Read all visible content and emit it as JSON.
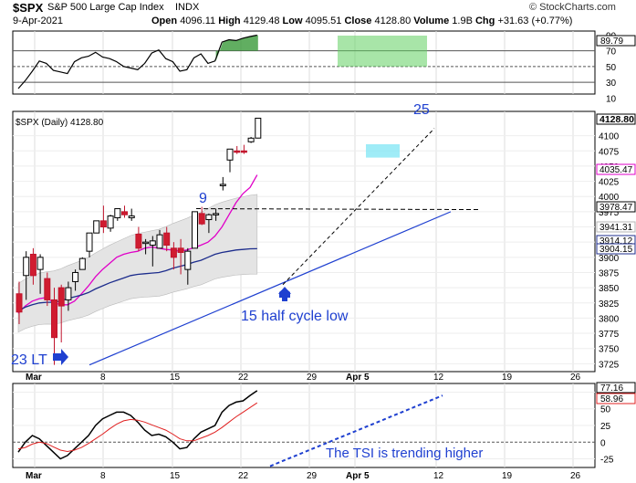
{
  "header": {
    "symbol": "$SPX",
    "name": "S&P 500 Large Cap Index",
    "exchange": "INDX",
    "date": "9-Apr-2021",
    "open_label": "Open",
    "open": "4096.11",
    "high_label": "High",
    "high": "4129.48",
    "low_label": "Low",
    "low": "4095.51",
    "close_label": "Close",
    "close": "4128.80",
    "volume_label": "Volume",
    "volume": "1.9B",
    "chg_label": "Chg",
    "chg": "+31.63 (+0.77%)",
    "watermark": "© StockCharts.com"
  },
  "chart_data": [
    {
      "type": "line",
      "panel": "rsi",
      "series": [
        {
          "name": "RSI",
          "values": [
            22,
            32,
            44,
            57,
            54,
            45,
            43,
            41,
            56,
            61,
            63,
            68,
            62,
            60,
            56,
            50,
            48,
            46,
            54,
            67,
            71,
            60,
            56,
            44,
            46,
            61,
            66,
            54,
            57,
            81,
            84,
            83,
            86,
            88,
            89.79
          ]
        }
      ],
      "ylim": [
        15,
        95
      ],
      "ticks": [
        10,
        30,
        50,
        70,
        90
      ],
      "tick_labels": [
        "10",
        "30",
        "50",
        "70",
        "90"
      ],
      "reference_lines": [
        70,
        50,
        30
      ],
      "last_value_label": "89.79",
      "highlight": "green box over final sessions (overbought)"
    },
    {
      "type": "candlestick",
      "panel": "price",
      "title": "$SPX (Daily) 4128.80",
      "last_price_label": "4128.80",
      "ohlc": [
        [
          3840,
          3860,
          3790,
          3810
        ],
        [
          3870,
          3910,
          3830,
          3900
        ],
        [
          3905,
          3915,
          3855,
          3870
        ],
        [
          3880,
          3905,
          3840,
          3900
        ],
        [
          3865,
          3875,
          3820,
          3830
        ],
        [
          3830,
          3850,
          3723,
          3768
        ],
        [
          3850,
          3855,
          3760,
          3820
        ],
        [
          3830,
          3860,
          3812,
          3850
        ],
        [
          3860,
          3880,
          3845,
          3875
        ],
        [
          3880,
          3900,
          3880,
          3898
        ],
        [
          3910,
          3940,
          3900,
          3940
        ],
        [
          3940,
          3960,
          3940,
          3960
        ],
        [
          3960,
          3985,
          3940,
          3950
        ],
        [
          3948,
          3970,
          3942,
          3968
        ],
        [
          3965,
          3980,
          3960,
          3980
        ],
        [
          3975,
          3985,
          3965,
          3970
        ],
        [
          3965,
          3980,
          3960,
          3968
        ],
        [
          3938,
          3950,
          3910,
          3915
        ],
        [
          3925,
          3930,
          3905,
          3925
        ],
        [
          3920,
          3935,
          3885,
          3927
        ],
        [
          3915,
          3945,
          3915,
          3937
        ],
        [
          3940,
          3950,
          3910,
          3920
        ],
        [
          3915,
          3925,
          3880,
          3900
        ],
        [
          3915,
          3930,
          3872,
          3908
        ],
        [
          3880,
          3915,
          3855,
          3910
        ],
        [
          3915,
          3975,
          3915,
          3975
        ],
        [
          3972,
          3983,
          3953,
          3955
        ],
        [
          3962,
          3972,
          3940,
          3970
        ],
        [
          3970,
          3980,
          3960,
          3972
        ],
        [
          4020,
          4032,
          4010,
          4020
        ],
        [
          4060,
          4078,
          4040,
          4078
        ],
        [
          4075,
          4083,
          4070,
          4073
        ],
        [
          4075,
          4085,
          4070,
          4073
        ],
        [
          4090,
          4098,
          4088,
          4096
        ],
        [
          4096.11,
          4129.48,
          4095.51,
          4128.8
        ]
      ],
      "overlays": [
        {
          "name": "EMA fast",
          "color": "#e000c8",
          "values": [
            3808,
            3820,
            3828,
            3832,
            3834,
            3826,
            3822,
            3822,
            3828,
            3840,
            3853,
            3868,
            3880,
            3890,
            3900,
            3905,
            3908,
            3910,
            3915,
            3917,
            3915,
            3913,
            3912,
            3910,
            3912,
            3916,
            3920,
            3925,
            3935,
            3950,
            3970,
            3990,
            4005,
            4015,
            4035.47
          ]
        },
        {
          "name": "SMA slow",
          "color": "#1c2c8c",
          "values": [
            3812,
            3818,
            3822,
            3825,
            3826,
            3826,
            3828,
            3832,
            3835,
            3838,
            3842,
            3848,
            3853,
            3858,
            3862,
            3866,
            3870,
            3872,
            3873,
            3874,
            3875,
            3878,
            3882,
            3885,
            3888,
            3892,
            3895,
            3900,
            3905,
            3908,
            3910,
            3912,
            3913,
            3914,
            3914.12
          ]
        }
      ],
      "annotations": [
        {
          "text": "9",
          "color": "#1f40d0"
        },
        {
          "text": "25",
          "color": "#1f40d0"
        },
        {
          "text": "15 half cycle low",
          "color": "#1f40d0"
        },
        {
          "text": "23 LT",
          "color": "#1f40d0"
        }
      ],
      "price_labels": [
        "4128.80",
        "4035.47",
        "3978.47",
        "3941.31",
        "3914.12",
        "3904.15"
      ],
      "ticks": [
        3725,
        3750,
        3775,
        3800,
        3825,
        3850,
        3875,
        3900,
        3925,
        3950,
        3975,
        4000,
        4025,
        4050,
        4075,
        4100
      ],
      "tick_labels": [
        "3725",
        "3750",
        "3775",
        "3800",
        "3825",
        "3850",
        "3875",
        "3900",
        "3925",
        "3950",
        "3975",
        "4000",
        "4025",
        "4050",
        "4075",
        "4100"
      ],
      "ylim": [
        3712,
        4140
      ],
      "x_labels": [
        "Mar",
        "8",
        "15",
        "22",
        "29",
        "Apr 5",
        "12",
        "19",
        "26"
      ]
    },
    {
      "type": "line",
      "panel": "tsi",
      "series": [
        {
          "name": "TSI",
          "color": "#000000",
          "values": [
            -15,
            0,
            10,
            5,
            -5,
            -15,
            -25,
            -20,
            -10,
            0,
            10,
            25,
            35,
            40,
            45,
            45,
            40,
            30,
            18,
            10,
            12,
            8,
            0,
            -10,
            -8,
            5,
            15,
            20,
            25,
            45,
            55,
            60,
            62,
            70,
            77.16
          ]
        },
        {
          "name": "Signal",
          "color": "#e02020",
          "values": [
            -10,
            -8,
            -3,
            0,
            -2,
            -7,
            -12,
            -14,
            -12,
            -8,
            -2,
            5,
            12,
            20,
            27,
            32,
            34,
            33,
            30,
            26,
            22,
            18,
            12,
            5,
            2,
            2,
            6,
            10,
            15,
            22,
            30,
            38,
            45,
            52,
            58.96
          ]
        }
      ],
      "ylim": [
        -38,
        88
      ],
      "ticks": [
        -25,
        0,
        25,
        50,
        75
      ],
      "tick_labels": [
        "-25",
        "0",
        "25",
        "50",
        "75"
      ],
      "last_value_labels": [
        "77.16",
        "58.96"
      ],
      "annotations": [
        {
          "text": "The TSI is trending higher",
          "color": "#1f40d0"
        }
      ],
      "x_labels": [
        "Mar",
        "8",
        "15",
        "22",
        "29",
        "Apr 5",
        "12",
        "19",
        "26"
      ]
    }
  ]
}
